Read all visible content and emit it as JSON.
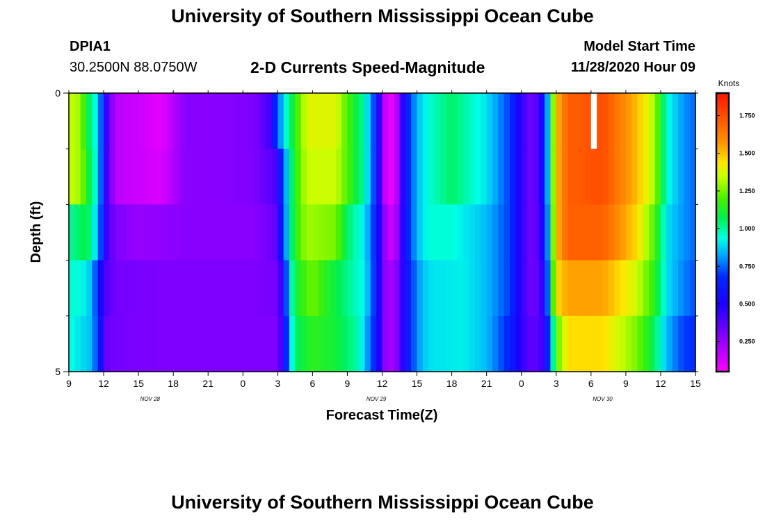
{
  "header": {
    "title": "University of Southern Mississippi Ocean Cube",
    "station_id": "DPIA1",
    "station_coords": "30.2500N 88.0750W",
    "model_label": "Model Start Time",
    "model_time": "11/28/2020 Hour 09"
  },
  "footer": {
    "title": "University of Southern Mississippi Ocean Cube"
  },
  "chart_data": {
    "type": "heatmap",
    "title": "2-D Currents Speed-Magnitude",
    "xlabel": "Forecast Time(Z)",
    "ylabel": "Depth (ft)",
    "x_unit": "forecast hour from 11/28 09Z",
    "xlim": [
      0,
      54
    ],
    "ylim": [
      0,
      5
    ],
    "x_ticks": [
      {
        "hour": 0,
        "label": "9"
      },
      {
        "hour": 3,
        "label": "12"
      },
      {
        "hour": 6,
        "label": "15"
      },
      {
        "hour": 9,
        "label": "18"
      },
      {
        "hour": 12,
        "label": "21"
      },
      {
        "hour": 15,
        "label": "0"
      },
      {
        "hour": 18,
        "label": "3"
      },
      {
        "hour": 21,
        "label": "6"
      },
      {
        "hour": 24,
        "label": "9"
      },
      {
        "hour": 27,
        "label": "12"
      },
      {
        "hour": 30,
        "label": "15"
      },
      {
        "hour": 33,
        "label": "18"
      },
      {
        "hour": 36,
        "label": "21"
      },
      {
        "hour": 39,
        "label": "0"
      },
      {
        "hour": 42,
        "label": "3"
      },
      {
        "hour": 45,
        "label": "6"
      },
      {
        "hour": 48,
        "label": "9"
      },
      {
        "hour": 51,
        "label": "12"
      },
      {
        "hour": 54,
        "label": "15"
      }
    ],
    "y_tick_labels": [
      {
        "depth": 0,
        "label": "0"
      },
      {
        "depth": 5,
        "label": "5"
      }
    ],
    "y_minor_ticks": [
      1,
      2,
      3,
      4
    ],
    "date_labels": [
      {
        "hour": 7,
        "label": "NOV  28"
      },
      {
        "hour": 26.5,
        "label": "NOV  29"
      },
      {
        "hour": 46,
        "label": "NOV  30"
      }
    ],
    "colorbar": {
      "unit": "Knots",
      "min": 0.05,
      "max": 1.9,
      "ticks": [
        0.25,
        0.5,
        0.75,
        1.0,
        1.25,
        1.5,
        1.75
      ],
      "tick_labels": [
        "0.250",
        "0.500",
        "0.750",
        "1.000",
        "1.250",
        "1.500",
        "1.750"
      ]
    },
    "missing_cells": [
      {
        "hour": 45,
        "depth_level": 0
      }
    ],
    "depth_levels": [
      0.5,
      1.5,
      2.5,
      3.5,
      4.5
    ],
    "time_step_hours": 0.5,
    "speed_keyframes": [
      {
        "name": "level-0 (0-1 ft)",
        "points": [
          [
            0,
            1.35
          ],
          [
            1,
            1.3
          ],
          [
            1.5,
            1.1
          ],
          [
            2.5,
            0.9
          ],
          [
            3.2,
            0.45
          ],
          [
            4,
            0.18
          ],
          [
            6,
            0.15
          ],
          [
            8,
            0.1
          ],
          [
            10,
            0.28
          ],
          [
            13,
            0.28
          ],
          [
            16,
            0.3
          ],
          [
            17.3,
            0.42
          ],
          [
            17.8,
            0.65
          ],
          [
            18.5,
            0.9
          ],
          [
            19.5,
            1.15
          ],
          [
            20.5,
            1.38
          ],
          [
            23,
            1.38
          ],
          [
            24,
            1.2
          ],
          [
            25.5,
            0.98
          ],
          [
            26.6,
            0.6
          ],
          [
            27,
            0.2
          ],
          [
            28,
            0.05
          ],
          [
            29,
            0.6
          ],
          [
            30,
            0.85
          ],
          [
            31,
            0.95
          ],
          [
            33,
            1.05
          ],
          [
            36,
            0.9
          ],
          [
            38,
            0.7
          ],
          [
            39,
            0.45
          ],
          [
            40,
            0.3
          ],
          [
            41,
            0.6
          ],
          [
            42,
            1.5
          ],
          [
            43,
            1.7
          ],
          [
            46,
            1.75
          ],
          [
            49,
            1.5
          ],
          [
            50.5,
            1.3
          ],
          [
            51.5,
            0.95
          ],
          [
            53,
            0.8
          ],
          [
            54,
            0.75
          ]
        ]
      },
      {
        "name": "level-1 (1-2 ft)",
        "points": [
          [
            0,
            1.35
          ],
          [
            1,
            1.3
          ],
          [
            1.5,
            1.15
          ],
          [
            2.5,
            0.9
          ],
          [
            3.2,
            0.45
          ],
          [
            4,
            0.18
          ],
          [
            6,
            0.15
          ],
          [
            8,
            0.12
          ],
          [
            10,
            0.28
          ],
          [
            13,
            0.28
          ],
          [
            16,
            0.3
          ],
          [
            17.8,
            0.4
          ],
          [
            18.3,
            0.65
          ],
          [
            19,
            0.95
          ],
          [
            19.5,
            1.15
          ],
          [
            20.5,
            1.35
          ],
          [
            23,
            1.35
          ],
          [
            24,
            1.2
          ],
          [
            25.5,
            0.98
          ],
          [
            26.6,
            0.6
          ],
          [
            27,
            0.2
          ],
          [
            28,
            0.05
          ],
          [
            29,
            0.6
          ],
          [
            30,
            0.85
          ],
          [
            31,
            0.95
          ],
          [
            33,
            1.05
          ],
          [
            36,
            0.9
          ],
          [
            38,
            0.7
          ],
          [
            39,
            0.45
          ],
          [
            40,
            0.3
          ],
          [
            41,
            0.6
          ],
          [
            42,
            1.5
          ],
          [
            43,
            1.7
          ],
          [
            46,
            1.75
          ],
          [
            49,
            1.5
          ],
          [
            50.5,
            1.3
          ],
          [
            51.5,
            0.95
          ],
          [
            53,
            0.8
          ],
          [
            54,
            0.75
          ]
        ]
      },
      {
        "name": "level-2 (2-3 ft)",
        "points": [
          [
            0,
            1.0
          ],
          [
            1,
            1.05
          ],
          [
            1.5,
            1.1
          ],
          [
            2.5,
            0.85
          ],
          [
            3.2,
            0.45
          ],
          [
            4,
            0.3
          ],
          [
            6,
            0.25
          ],
          [
            10,
            0.28
          ],
          [
            13,
            0.28
          ],
          [
            16,
            0.28
          ],
          [
            17.8,
            0.35
          ],
          [
            18.3,
            0.6
          ],
          [
            19,
            0.95
          ],
          [
            19.5,
            1.15
          ],
          [
            20.5,
            1.3
          ],
          [
            23,
            1.25
          ],
          [
            24,
            1.05
          ],
          [
            25.5,
            0.9
          ],
          [
            26.6,
            0.6
          ],
          [
            27,
            0.3
          ],
          [
            28,
            0.1
          ],
          [
            29,
            0.6
          ],
          [
            30,
            0.85
          ],
          [
            31,
            0.95
          ],
          [
            33,
            0.95
          ],
          [
            36,
            0.85
          ],
          [
            38,
            0.7
          ],
          [
            39,
            0.45
          ],
          [
            40,
            0.3
          ],
          [
            41,
            0.55
          ],
          [
            42,
            1.5
          ],
          [
            43,
            1.7
          ],
          [
            46,
            1.7
          ],
          [
            49,
            1.45
          ],
          [
            50.5,
            1.2
          ],
          [
            51.5,
            0.9
          ],
          [
            53,
            0.8
          ],
          [
            54,
            0.75
          ]
        ]
      },
      {
        "name": "level-3 (3-4 ft)",
        "points": [
          [
            0,
            0.95
          ],
          [
            1,
            0.95
          ],
          [
            2,
            0.85
          ],
          [
            2.8,
            0.5
          ],
          [
            3.2,
            0.4
          ],
          [
            4,
            0.32
          ],
          [
            8,
            0.3
          ],
          [
            13,
            0.3
          ],
          [
            16,
            0.3
          ],
          [
            18,
            0.32
          ],
          [
            18.5,
            0.55
          ],
          [
            19,
            0.9
          ],
          [
            19.5,
            1.1
          ],
          [
            21,
            1.25
          ],
          [
            22,
            1.15
          ],
          [
            23.5,
            1.05
          ],
          [
            25.5,
            0.92
          ],
          [
            26.6,
            0.6
          ],
          [
            27,
            0.3
          ],
          [
            28,
            0.2
          ],
          [
            29,
            0.55
          ],
          [
            30,
            0.8
          ],
          [
            31,
            0.9
          ],
          [
            34,
            0.92
          ],
          [
            36,
            0.85
          ],
          [
            38,
            0.7
          ],
          [
            39,
            0.45
          ],
          [
            40,
            0.3
          ],
          [
            41,
            0.5
          ],
          [
            42,
            1.45
          ],
          [
            43,
            1.55
          ],
          [
            46,
            1.55
          ],
          [
            49,
            1.35
          ],
          [
            50.5,
            1.15
          ],
          [
            51.5,
            0.9
          ],
          [
            53,
            0.78
          ],
          [
            54,
            0.72
          ]
        ]
      },
      {
        "name": "level-4 (4-5 ft)",
        "points": [
          [
            0,
            0.95
          ],
          [
            1,
            0.9
          ],
          [
            2,
            0.85
          ],
          [
            2.8,
            0.55
          ],
          [
            3.2,
            0.35
          ],
          [
            4,
            0.32
          ],
          [
            8,
            0.3
          ],
          [
            13,
            0.3
          ],
          [
            16,
            0.3
          ],
          [
            18,
            0.3
          ],
          [
            18.5,
            0.5
          ],
          [
            19,
            0.85
          ],
          [
            19.5,
            1.05
          ],
          [
            21,
            1.15
          ],
          [
            23,
            1.1
          ],
          [
            25,
            0.98
          ],
          [
            26.6,
            0.6
          ],
          [
            27,
            0.3
          ],
          [
            28,
            0.2
          ],
          [
            29,
            0.55
          ],
          [
            30,
            0.8
          ],
          [
            31,
            0.9
          ],
          [
            34,
            0.92
          ],
          [
            36,
            0.85
          ],
          [
            38,
            0.65
          ],
          [
            39,
            0.45
          ],
          [
            40,
            0.35
          ],
          [
            41,
            0.45
          ],
          [
            42,
            1.2
          ],
          [
            43,
            1.45
          ],
          [
            46,
            1.45
          ],
          [
            49,
            1.25
          ],
          [
            50.5,
            1.05
          ],
          [
            51.5,
            0.85
          ],
          [
            53,
            0.7
          ],
          [
            54,
            0.68
          ]
        ]
      }
    ]
  }
}
